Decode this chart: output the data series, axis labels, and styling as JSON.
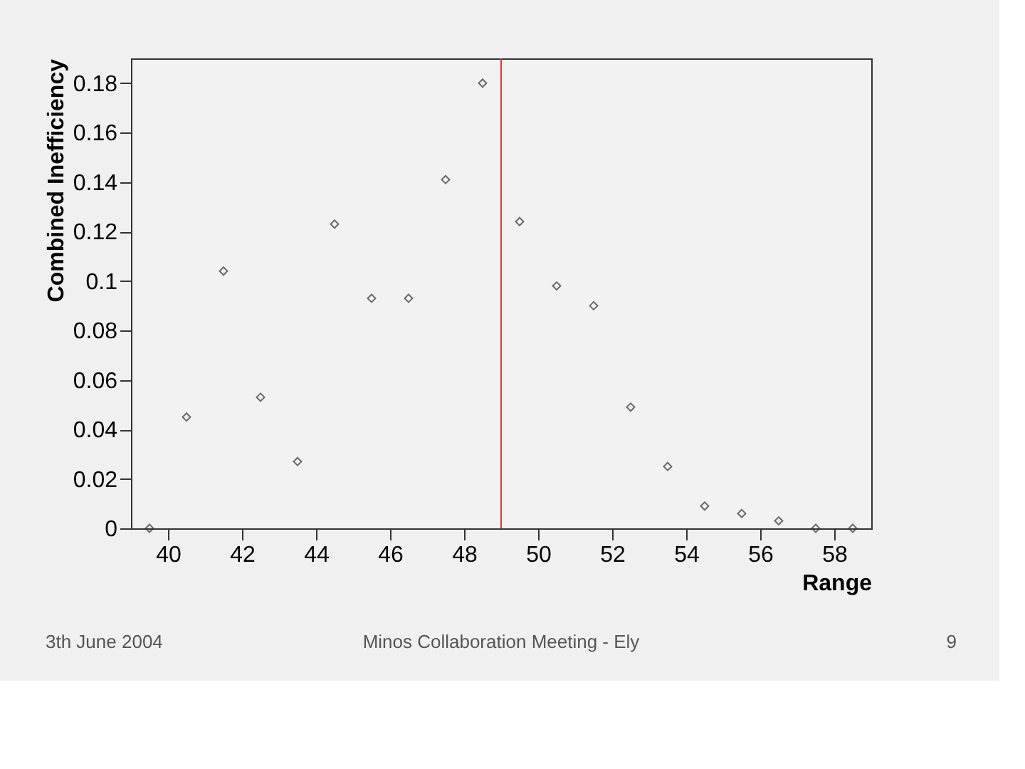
{
  "chart_data": {
    "type": "scatter",
    "xlabel": "Range",
    "ylabel": "Combined Inefficiency",
    "x": [
      39.5,
      40.5,
      41.5,
      42.5,
      43.5,
      44.5,
      45.5,
      46.5,
      47.5,
      48.5,
      49.5,
      50.5,
      51.5,
      52.5,
      53.5,
      54.5,
      55.5,
      56.5,
      57.5,
      58.5
    ],
    "series": [
      {
        "color": "#333333",
        "values": [
          0,
          0.045,
          0.104,
          0.053,
          0.027,
          0.123,
          0.093,
          0.093,
          0.141,
          0.18,
          0.124,
          0.098,
          0.09,
          0.049,
          0.025,
          0.009,
          0.006,
          0.003,
          0,
          0
        ]
      }
    ],
    "xlim": [
      39,
      59
    ],
    "xticks": [
      40,
      42,
      44,
      46,
      48,
      50,
      52,
      54,
      56,
      58
    ],
    "ylim": [
      0,
      0.19
    ],
    "yticks": [
      0,
      0.02,
      0.04,
      0.06,
      0.08,
      0.1,
      0.12,
      0.14,
      0.16,
      0.18
    ],
    "ref_lines": [
      {
        "axis": "x",
        "value": 49,
        "color": "#ff2a2a",
        "line_style": "solid"
      }
    ],
    "marker": "diamond",
    "grid": false,
    "annotations": [
      "3th June 2004",
      "Minos Collaboration Meeting - Ely",
      "9"
    ]
  }
}
